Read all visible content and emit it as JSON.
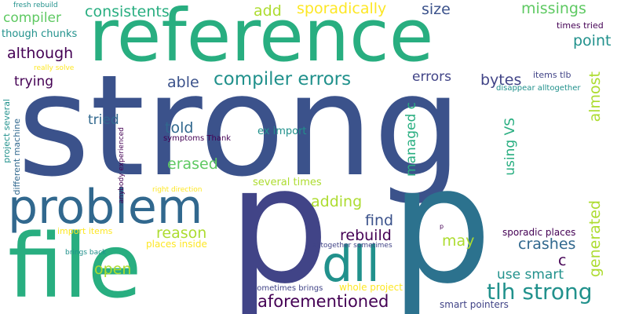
{
  "words": [
    "strong",
    "p",
    "p",
    "reference",
    "file",
    "problem",
    "dll",
    "compiler errors",
    "tlh strong",
    "aforementioned",
    "consistents",
    "sporadically",
    "missings",
    "add",
    "size",
    "compiler",
    "although",
    "trying",
    "tried",
    "told",
    "erased",
    "able",
    "errors",
    "bytes",
    "point",
    "almost",
    "generated",
    "managed c",
    "using VS",
    "adding",
    "find",
    "reason",
    "rebuild",
    "may",
    "crashes",
    "c",
    "use smart",
    "open",
    "fresh rebuild",
    "though chunks",
    "times tried",
    "items tlb",
    "disappear alltogether",
    "really solve",
    "project several",
    "different machine",
    "symptoms Thank",
    "ex import",
    "anybody experienced",
    "several times",
    "right direction",
    "import items",
    "places inside",
    "brings back",
    "alltogether sometimes",
    "sporadic places",
    "sometimes brings",
    "whole project",
    "smart pointers",
    "p"
  ]
}
